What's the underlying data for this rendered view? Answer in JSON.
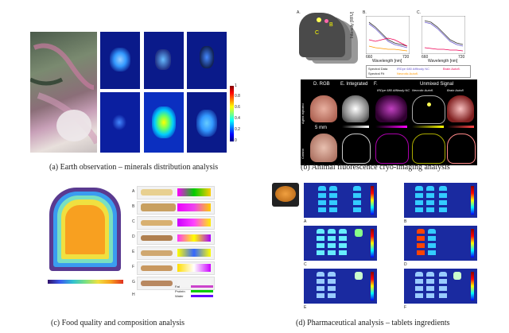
{
  "captions": {
    "a": "(a) Earth observation – minerals distribution analysis",
    "b": "(b) Animal fluorescence cryo-imaging analysis",
    "c": "(c) Food quality and composition analysis",
    "d": "(d) Pharmaceutical analysis – tablets ingredients"
  },
  "panel_a": {
    "colorbar_ticks": [
      "1",
      "0.8",
      "0.6",
      "0.4",
      "0.2",
      "0"
    ]
  },
  "panel_b": {
    "label_A": "A.",
    "label_B": "B.",
    "label_C": "C.",
    "label_D": "D.",
    "label_E": "E.",
    "label_F": "F.",
    "rgb": "RGB",
    "integrated": "Integrated",
    "unmixed": "Unmixed Signal",
    "probe": "IRDye 680 Affibody NC",
    "necrotic": "Necrotic Autofl.",
    "brain": "Brain Autofl.",
    "ylabel": "Intensity [RFU]",
    "xlabel": "Wavelength [nm]",
    "x_ticks": [
      "660",
      "720"
    ],
    "row_top": "Agent Injected",
    "row_bottom": "Control",
    "scale": "5 mm",
    "legend": [
      "Spectral Data",
      "IRDye 680 Affibody NC",
      "Brain Autofl.",
      "Spectral Fit",
      "Necrotic Autofl."
    ],
    "mini_ticks": [
      "0",
      "1",
      "0",
      "0.5",
      "0",
      "1"
    ]
  },
  "panel_c": {
    "row_labels": [
      "A",
      "B",
      "C",
      "D",
      "E",
      "F",
      "G",
      "H"
    ],
    "legend": [
      "Fat",
      "Protein",
      "Water"
    ]
  },
  "panel_d": {
    "sub_labels": [
      "A",
      "B",
      "C",
      "D",
      "E",
      "F"
    ]
  },
  "colors": {
    "tile_bg": "#0a1a8a",
    "jet": [
      "#00007f",
      "#0000ff",
      "#007fff",
      "#00ffff",
      "#7fff7f",
      "#ffff00",
      "#ff7f00",
      "#ff0000",
      "#7f0000"
    ]
  }
}
